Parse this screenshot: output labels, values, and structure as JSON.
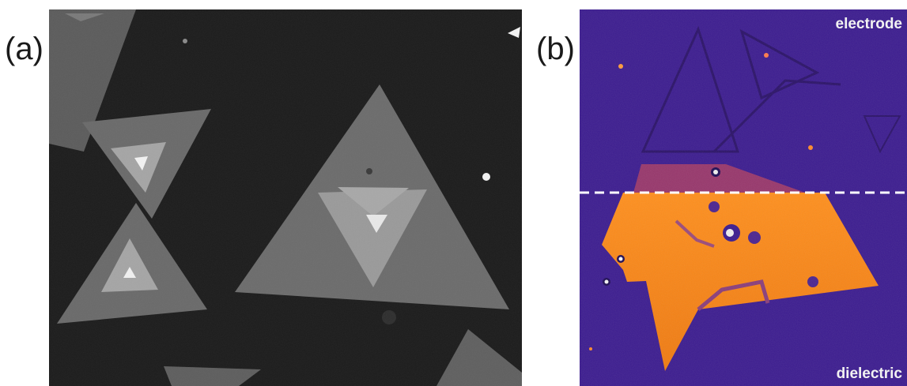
{
  "panels": {
    "a": {
      "label": "(a)"
    },
    "b": {
      "label": "(b)",
      "top_text": "electrode",
      "bottom_text": "dielectric"
    }
  },
  "colors": {
    "background_a": "#1c1c1c",
    "flake_gray": "#6e6e6e",
    "inner_light": "#a6a6a6",
    "core_white": "#f0f0f0",
    "background_b": "#3a1a8e",
    "orange": "#ff8a1a"
  }
}
